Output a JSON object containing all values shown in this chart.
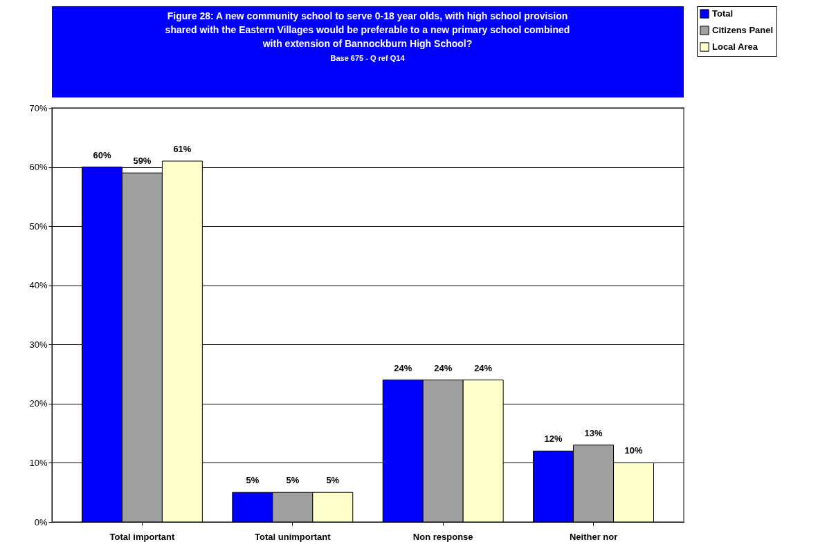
{
  "chart_data": {
    "type": "bar",
    "title": [
      "Figure 28: A new community school to serve 0-18 year olds, with high school provision",
      "shared with the Eastern Villages would be preferable to a new primary school combined",
      "with extension of Bannockburn High School?"
    ],
    "subtitle": "Base 675 - Q ref Q14",
    "categories": [
      "Total important",
      "Total unimportant",
      "Non response",
      "Neither nor"
    ],
    "series": [
      {
        "name": "Total",
        "color": "#0000ff",
        "values": [
          60,
          5,
          24,
          12
        ]
      },
      {
        "name": "Citizens Panel",
        "color": "#a0a0a0",
        "values": [
          59,
          5,
          24,
          13
        ]
      },
      {
        "name": "Local Area",
        "color": "#ffffcc",
        "values": [
          61,
          5,
          24,
          10
        ]
      }
    ],
    "ylim": [
      0,
      70
    ],
    "yticks": [
      {
        "value": 0,
        "label": "0%"
      },
      {
        "value": 10,
        "label": "10%"
      },
      {
        "value": 20,
        "label": "20%"
      },
      {
        "value": 30,
        "label": "30%"
      },
      {
        "value": 40,
        "label": "40%"
      },
      {
        "value": 50,
        "label": "50%"
      },
      {
        "value": 60,
        "label": "60%"
      },
      {
        "value": 70,
        "label": "70%"
      }
    ],
    "value_labels": [
      [
        "60%",
        "5%",
        "24%",
        "12%"
      ],
      [
        "59%",
        "5%",
        "24%",
        "13%"
      ],
      [
        "61%",
        "5%",
        "24%",
        "10%"
      ]
    ],
    "grid": "y",
    "legend": "right"
  }
}
